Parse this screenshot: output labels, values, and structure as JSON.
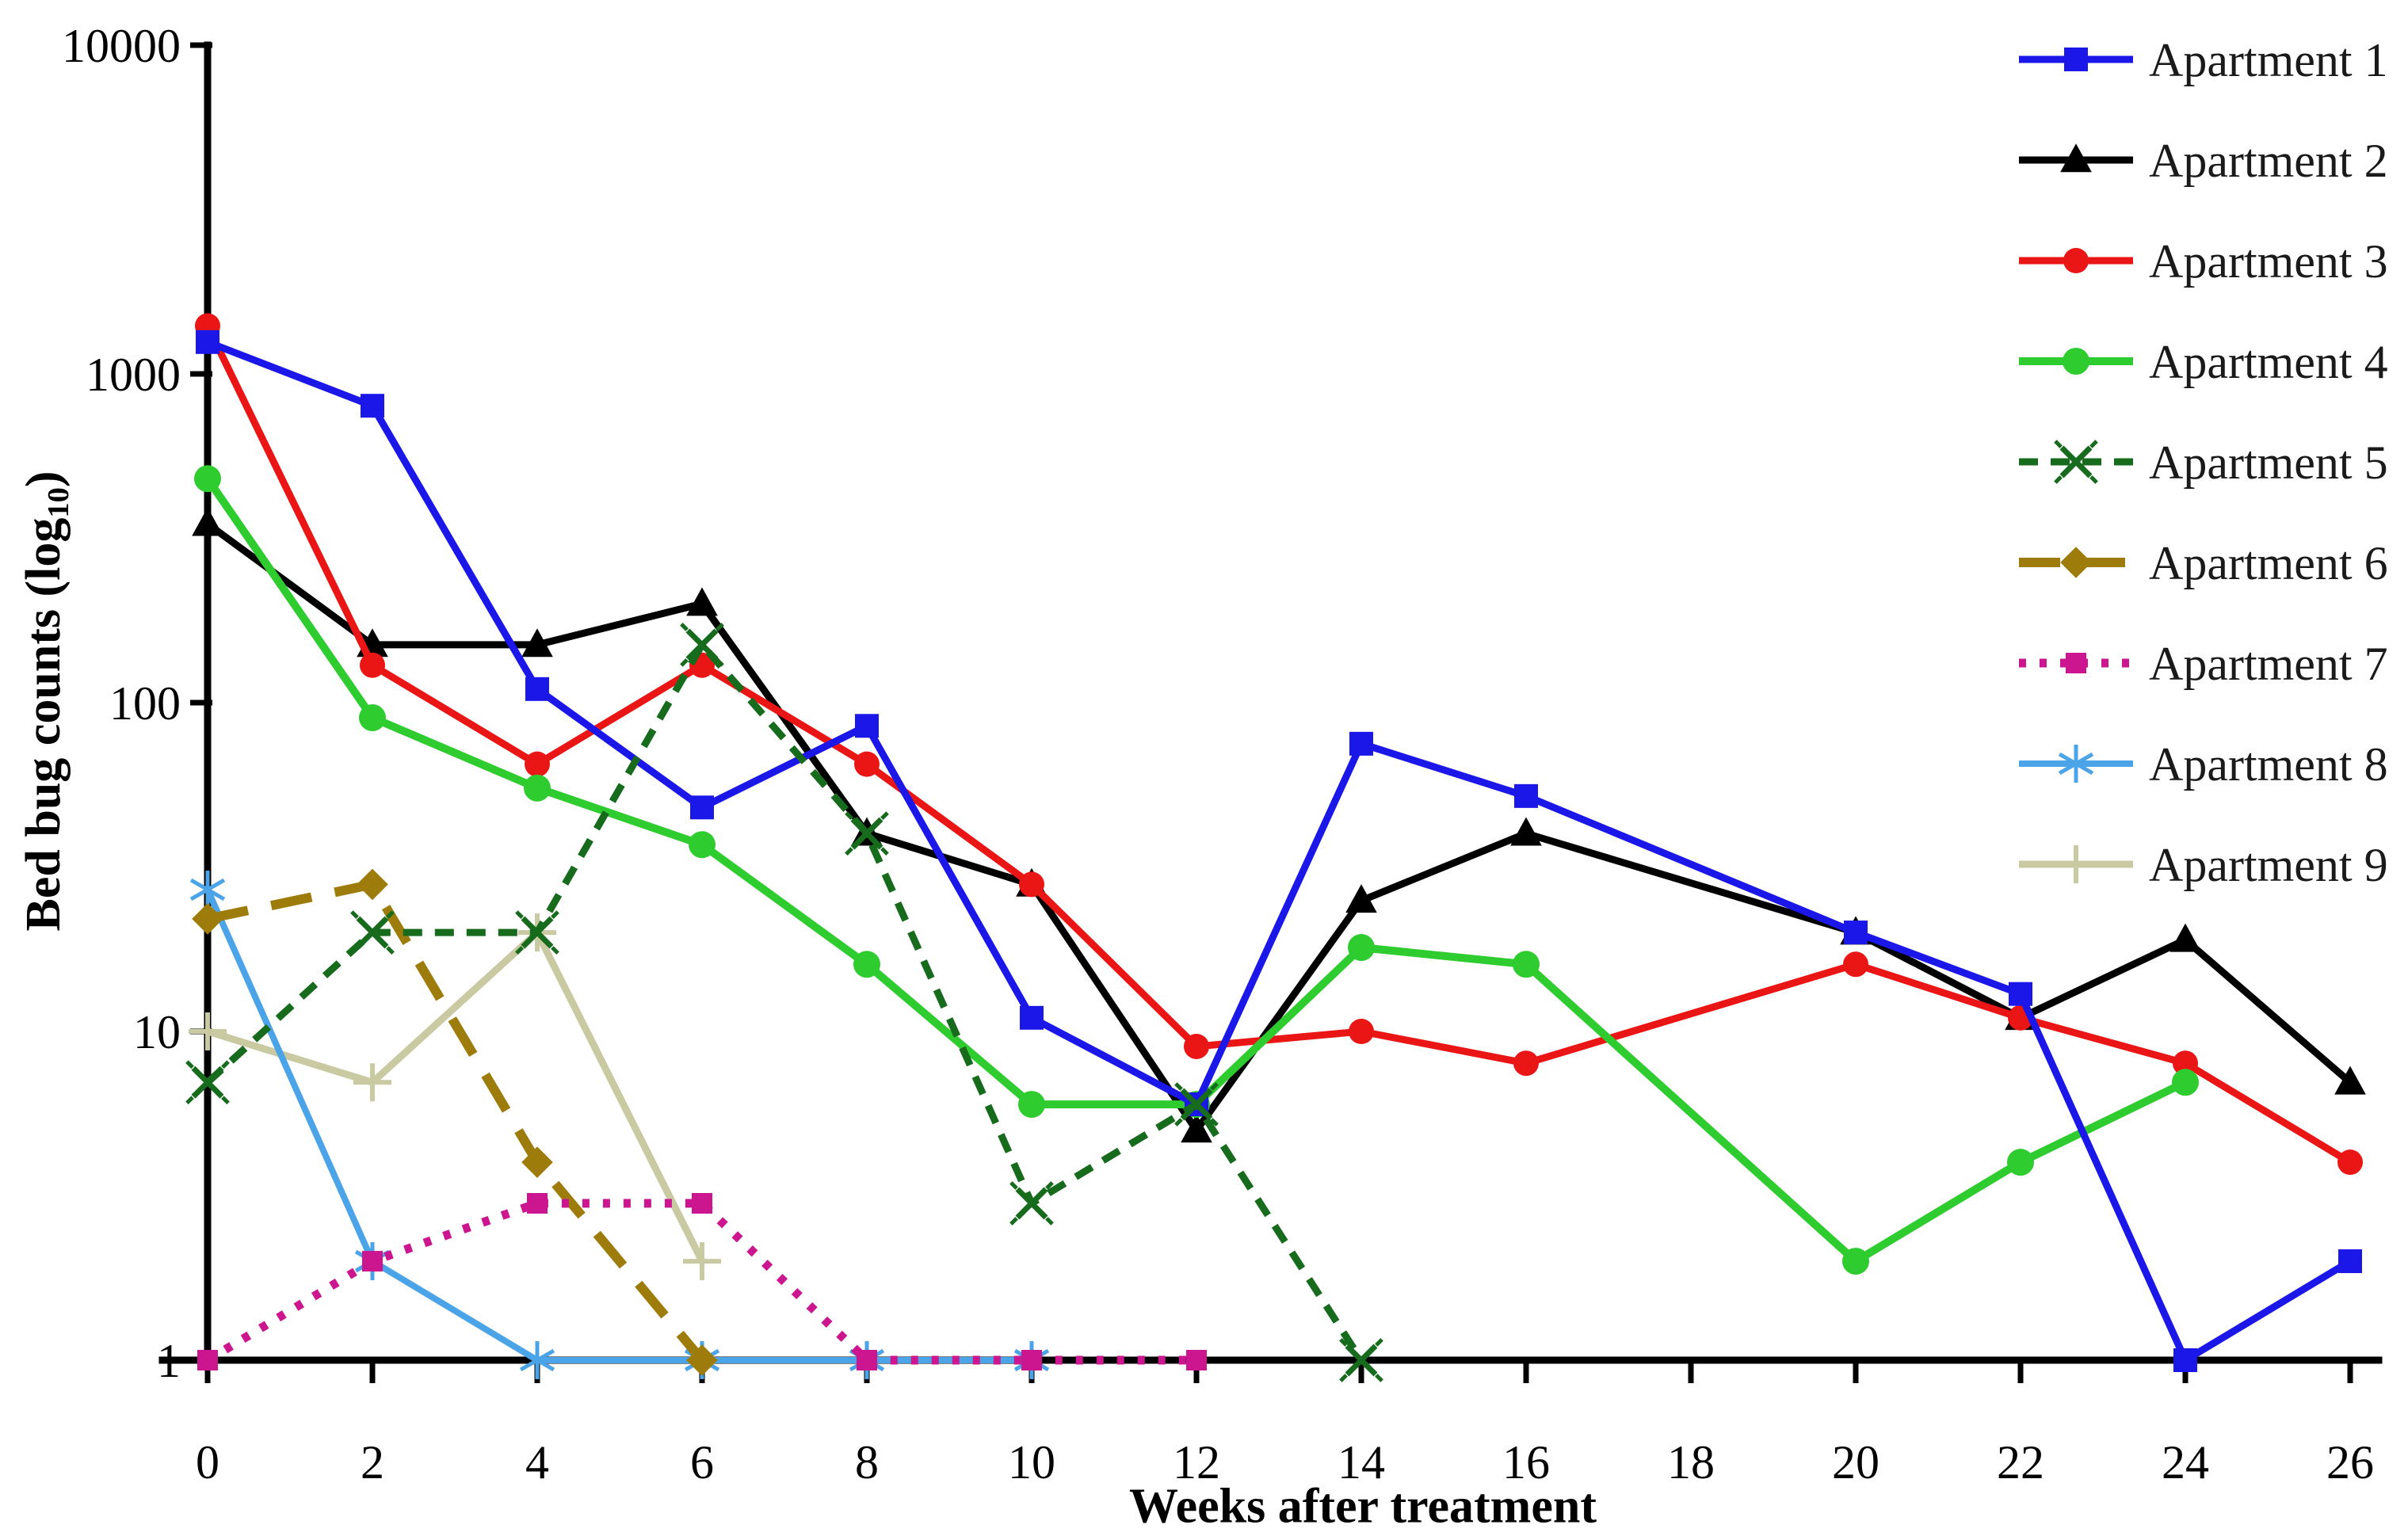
{
  "figure": {
    "xlabel": "Weeks after treatment",
    "ylabel_main": "Bed bug counts (log",
    "ylabel_sub": "10",
    "ylabel_close": ")"
  },
  "chart_data": {
    "type": "line",
    "title": "",
    "xlabel": "Weeks after treatment",
    "ylabel": "Bed bug counts (log10)",
    "x_axis": {
      "min": 0,
      "max": 26,
      "ticks": [
        0,
        2,
        4,
        6,
        8,
        10,
        12,
        14,
        16,
        18,
        20,
        22,
        24,
        26
      ]
    },
    "y_axis": {
      "scale": "log10",
      "min": 1,
      "max": 10000,
      "ticks": [
        1,
        10,
        100,
        1000,
        10000
      ]
    },
    "grid": false,
    "legend_position": "upper right",
    "series": [
      {
        "name": "Apartment 1",
        "color": "#1a17e8",
        "line_style": "solid",
        "marker": "square",
        "line_width": 9,
        "marker_size": 30,
        "points": [
          [
            0,
            1250
          ],
          [
            2,
            800
          ],
          [
            4,
            110
          ],
          [
            6,
            48
          ],
          [
            8,
            85
          ],
          [
            10,
            11
          ],
          [
            12,
            6
          ],
          [
            14,
            75
          ],
          [
            16,
            52
          ],
          [
            20,
            20
          ],
          [
            22,
            13
          ],
          [
            24,
            1
          ],
          [
            26,
            2
          ]
        ]
      },
      {
        "name": "Apartment 2",
        "color": "#000000",
        "line_style": "solid",
        "marker": "triangle",
        "line_width": 9,
        "marker_size": 36,
        "points": [
          [
            0,
            350
          ],
          [
            2,
            150
          ],
          [
            4,
            150
          ],
          [
            6,
            200
          ],
          [
            8,
            40
          ],
          [
            10,
            28
          ],
          [
            12,
            5
          ],
          [
            14,
            25
          ],
          [
            16,
            40
          ],
          [
            20,
            20
          ],
          [
            22,
            11
          ],
          [
            24,
            19
          ],
          [
            26,
            7
          ]
        ]
      },
      {
        "name": "Apartment 3",
        "color": "#ea1515",
        "line_style": "solid",
        "marker": "circle",
        "line_width": 9,
        "marker_size": 32,
        "points": [
          [
            0,
            1400
          ],
          [
            2,
            130
          ],
          [
            4,
            65
          ],
          [
            6,
            130
          ],
          [
            8,
            65
          ],
          [
            10,
            28
          ],
          [
            12,
            9
          ],
          [
            14,
            10
          ],
          [
            16,
            8
          ],
          [
            20,
            16
          ],
          [
            22,
            11
          ],
          [
            24,
            8
          ],
          [
            26,
            4
          ]
        ]
      },
      {
        "name": "Apartment 4",
        "color": "#2ecc2e",
        "line_style": "solid",
        "marker": "circle",
        "line_width": 10,
        "marker_size": 34,
        "points": [
          [
            0,
            480
          ],
          [
            2,
            90
          ],
          [
            4,
            55
          ],
          [
            6,
            37
          ],
          [
            8,
            16
          ],
          [
            10,
            6
          ],
          [
            12,
            6
          ],
          [
            14,
            18
          ],
          [
            16,
            16
          ],
          [
            20,
            2
          ],
          [
            22,
            4
          ],
          [
            24,
            7
          ]
        ]
      },
      {
        "name": "Apartment 5",
        "color": "#176b1c",
        "line_style": "dashed",
        "marker": "x",
        "line_width": 9,
        "marker_size": 36,
        "points": [
          [
            0,
            7
          ],
          [
            2,
            20
          ],
          [
            4,
            20
          ],
          [
            6,
            150
          ],
          [
            8,
            40
          ],
          [
            10,
            3
          ],
          [
            12,
            6
          ],
          [
            14,
            1
          ]
        ]
      },
      {
        "name": "Apartment 6",
        "color": "#9e7c0c",
        "line_style": "longdash",
        "marker": "diamond",
        "line_width": 12,
        "marker_size": 36,
        "points": [
          [
            0,
            22
          ],
          [
            2,
            28
          ],
          [
            4,
            4
          ],
          [
            6,
            1
          ]
        ]
      },
      {
        "name": "Apartment 7",
        "color": "#cc1690",
        "line_style": "dotted",
        "marker": "square",
        "line_width": 11,
        "marker_size": 26,
        "points": [
          [
            0,
            1
          ],
          [
            2,
            2
          ],
          [
            4,
            3
          ],
          [
            6,
            3
          ],
          [
            8,
            1
          ],
          [
            10,
            1
          ],
          [
            12,
            1
          ]
        ]
      },
      {
        "name": "Apartment 8",
        "color": "#4ba3e8",
        "line_style": "solid",
        "marker": "asterisk",
        "line_width": 8,
        "marker_size": 48,
        "points": [
          [
            0,
            27
          ],
          [
            2,
            2
          ],
          [
            4,
            1
          ],
          [
            6,
            1
          ],
          [
            8,
            1
          ],
          [
            10,
            1
          ]
        ]
      },
      {
        "name": "Apartment 9",
        "color": "#c9c9a2",
        "line_style": "solid",
        "marker": "plus",
        "line_width": 9,
        "marker_size": 48,
        "points": [
          [
            0,
            10
          ],
          [
            2,
            7
          ],
          [
            4,
            20
          ],
          [
            6,
            2
          ]
        ]
      }
    ]
  }
}
